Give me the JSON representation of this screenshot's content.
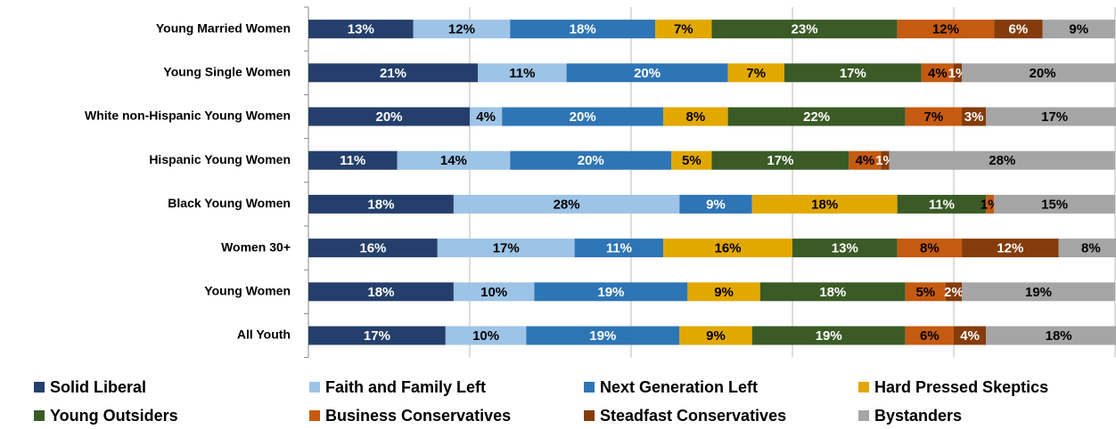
{
  "chart_data": {
    "type": "stacked_bar_horizontal",
    "categories": [
      "Young Married Women",
      "Young Single Women",
      "White non-Hispanic Young Women",
      "Hispanic Young Women",
      "Black Young Women",
      "Women 30+",
      "Young Women",
      "All Youth"
    ],
    "xlim": [
      0,
      100
    ],
    "xticks": [
      0,
      20,
      40,
      60,
      80,
      100
    ],
    "grid": true,
    "legend": "bottom",
    "series": [
      {
        "name": "Solid Liberal",
        "color": "#243f6b",
        "label_color": "#ffffff",
        "values": [
          13,
          21,
          20,
          11,
          18,
          16,
          18,
          17
        ],
        "value_labels": [
          "13%",
          "21%",
          "20%",
          "11%",
          "18%",
          "16%",
          "18%",
          "17%"
        ]
      },
      {
        "name": "Faith and Family Left",
        "color": "#9dc3e6",
        "label_color": "#000000",
        "values": [
          12,
          11,
          4,
          14,
          28,
          17,
          10,
          10
        ],
        "value_labels": [
          "12%",
          "11%",
          "4%",
          "14%",
          "28%",
          "17%",
          "10%",
          "10%"
        ]
      },
      {
        "name": "Next Generation Left",
        "color": "#2e75b6",
        "label_color": "#ffffff",
        "values": [
          18,
          20,
          20,
          20,
          9,
          11,
          19,
          19
        ],
        "value_labels": [
          "18%",
          "20%",
          "20%",
          "20%",
          "9%",
          "11%",
          "19%",
          "19%"
        ]
      },
      {
        "name": "Hard Pressed Skeptics",
        "color": "#e2a800",
        "label_color": "#000000",
        "values": [
          7,
          7,
          8,
          5,
          18,
          16,
          9,
          9
        ],
        "value_labels": [
          "7%",
          "7%",
          "8%",
          "5%",
          "18%",
          "16%",
          "9%",
          "9%"
        ]
      },
      {
        "name": "Young Outsiders",
        "color": "#3a5a26",
        "label_color": "#ffffff",
        "values": [
          23,
          17,
          22,
          17,
          11,
          13,
          18,
          19
        ],
        "value_labels": [
          "23%",
          "17%",
          "22%",
          "17%",
          "11%",
          "13%",
          "18%",
          "19%"
        ]
      },
      {
        "name": "Business Conservatives",
        "color": "#c55a11",
        "label_color": "#000000",
        "values": [
          12,
          4,
          7,
          4,
          1,
          8,
          5,
          6
        ],
        "value_labels": [
          "12%",
          "4%",
          "7%",
          "4%",
          "1%",
          "8%",
          "5%",
          "6%"
        ]
      },
      {
        "name": "Steadfast Conservatives",
        "color": "#843c0c",
        "label_color": "#ffffff",
        "values": [
          6,
          1,
          3,
          1,
          null,
          12,
          2,
          4
        ],
        "value_labels": [
          "6%",
          "1%",
          "3%",
          "1%",
          null,
          "12%",
          "2%",
          "4%"
        ]
      },
      {
        "name": "Bystanders",
        "color": "#a5a5a5",
        "label_color": "#000000",
        "values": [
          9,
          20,
          17,
          28,
          15,
          8,
          19,
          18
        ],
        "value_labels": [
          "9%",
          "20%",
          "17%",
          "28%",
          "15%",
          "8%",
          "19%",
          "18%"
        ]
      }
    ]
  }
}
